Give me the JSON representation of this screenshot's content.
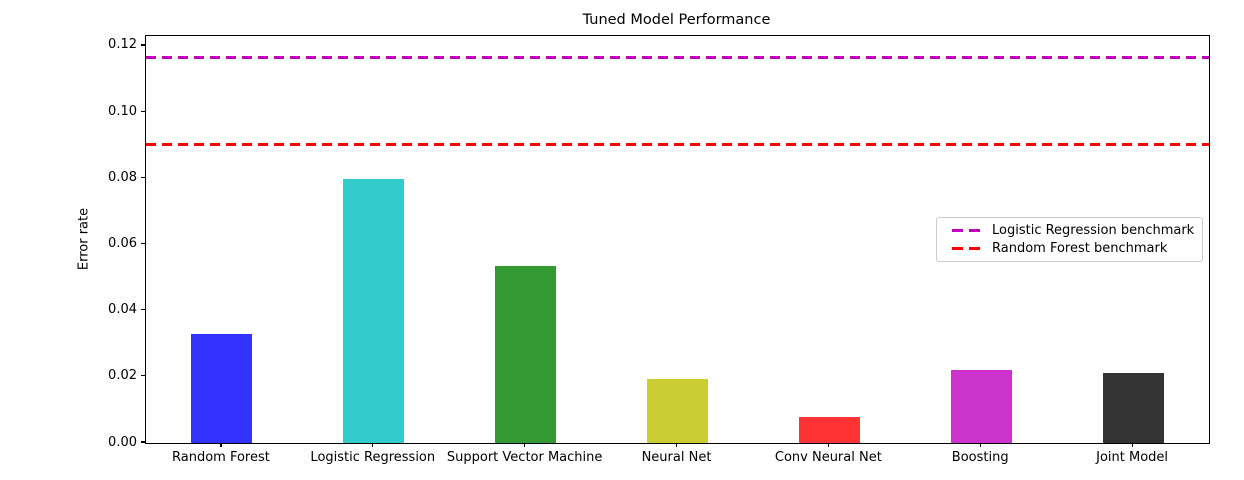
{
  "chart_data": {
    "type": "bar",
    "title": "Tuned Model Performance",
    "xlabel": "",
    "ylabel": "Error rate",
    "categories": [
      "Random Forest",
      "Logistic Regression",
      "Support Vector Machine",
      "Neural Net",
      "Conv Neural Net",
      "Boosting",
      "Joint Model"
    ],
    "values": [
      0.0329,
      0.0799,
      0.0536,
      0.0194,
      0.008,
      0.0221,
      0.0212
    ],
    "bar_colors": [
      "#3333ff",
      "#33cccc",
      "#339933",
      "#cccc33",
      "#ff3333",
      "#cc33cc",
      "#333333"
    ],
    "yticks": [
      0.0,
      0.02,
      0.04,
      0.06,
      0.08,
      0.1,
      0.12
    ],
    "ytick_labels": [
      "0.00",
      "0.02",
      "0.04",
      "0.06",
      "0.08",
      "0.10",
      "0.12"
    ],
    "ylim": [
      0,
      0.123
    ],
    "grid": false,
    "legend_position": "center right",
    "benchmarks": [
      {
        "label": "Logistic Regression benchmark",
        "value": 0.1164,
        "color": "#bf00bf"
      },
      {
        "label": "Random Forest benchmark",
        "value": 0.0903,
        "color": "#ff0000"
      }
    ]
  }
}
